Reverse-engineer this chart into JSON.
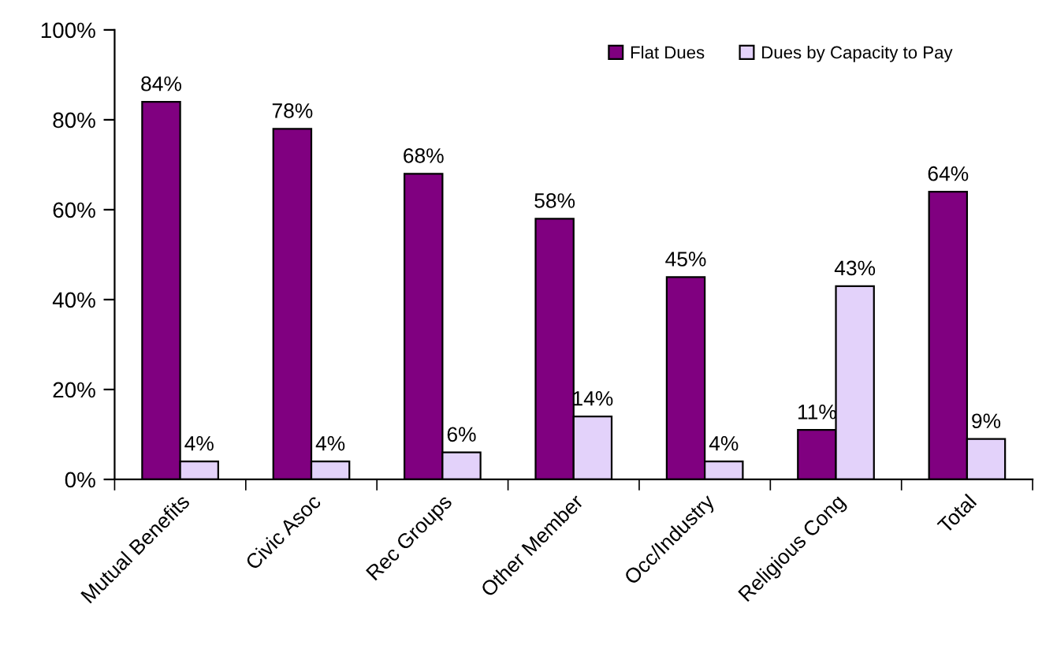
{
  "chart_data": {
    "type": "bar",
    "categories": [
      "Mutual Benefits",
      "Civic Asoc",
      "Rec Groups",
      "Other Member",
      "Occ/Industry",
      "Religious Cong",
      "Total"
    ],
    "series": [
      {
        "name": "Flat Dues",
        "color": "#800080",
        "values": [
          84,
          78,
          68,
          58,
          45,
          11,
          64
        ]
      },
      {
        "name": "Dues by Capacity to Pay",
        "color": "#e3d2fa",
        "values": [
          4,
          4,
          6,
          14,
          4,
          43,
          9
        ]
      }
    ],
    "ylim": [
      0,
      100
    ],
    "yticks": [
      {
        "value": 0,
        "label": "0%"
      },
      {
        "value": 20,
        "label": "20%"
      },
      {
        "value": 40,
        "label": "40%"
      },
      {
        "value": 60,
        "label": "60%"
      },
      {
        "value": 80,
        "label": "80%"
      },
      {
        "value": 100,
        "label": "100%"
      }
    ],
    "value_labels": [
      [
        "84%",
        "78%",
        "68%",
        "58%",
        "45%",
        "11%",
        "64%"
      ],
      [
        "4%",
        "4%",
        "6%",
        "14%",
        "4%",
        "43%",
        "9%"
      ]
    ],
    "grid": false,
    "legend": "top right"
  }
}
